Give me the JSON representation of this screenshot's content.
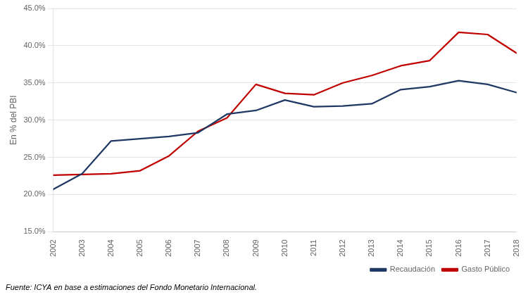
{
  "chart_data": {
    "type": "line",
    "y_label": "En % del PBI",
    "x": [
      2002,
      2003,
      2004,
      2005,
      2006,
      2007,
      2008,
      2009,
      2010,
      2011,
      2012,
      2013,
      2014,
      2015,
      2016,
      2017,
      2018
    ],
    "series": [
      {
        "name": "Recaudación",
        "color": "#1f3864",
        "values": [
          20.7,
          22.8,
          27.2,
          27.5,
          27.8,
          28.3,
          30.8,
          31.3,
          32.7,
          31.8,
          31.9,
          32.2,
          34.1,
          34.5,
          35.3,
          34.8,
          33.7
        ]
      },
      {
        "name": "Gasto Público",
        "color": "#c00000",
        "values": [
          22.6,
          22.7,
          22.8,
          23.2,
          25.2,
          28.5,
          30.3,
          34.8,
          33.6,
          33.4,
          35.0,
          36.0,
          37.3,
          38.0,
          41.8,
          41.5,
          39.0
        ]
      }
    ],
    "xlim": [
      2002,
      2018
    ],
    "xticks": [
      2002,
      2003,
      2004,
      2005,
      2006,
      2007,
      2008,
      2009,
      2010,
      2011,
      2012,
      2013,
      2014,
      2015,
      2016,
      2017,
      2018
    ],
    "ylim": [
      15.0,
      45.0
    ],
    "yticks": [
      {
        "value": 15.0,
        "label": "15.0%"
      },
      {
        "value": 20.0,
        "label": "20.0%"
      },
      {
        "value": 25.0,
        "label": "25.0%"
      },
      {
        "value": 30.0,
        "label": "30.0%"
      },
      {
        "value": 35.0,
        "label": "35.0%"
      },
      {
        "value": 40.0,
        "label": "40.0%"
      },
      {
        "value": 45.0,
        "label": "45.0%"
      }
    ],
    "grid": "y",
    "legend": "lower right",
    "annotations": [
      "Fuente: ICYA en base a estimaciones del Fondo Monetario Internacional."
    ]
  }
}
